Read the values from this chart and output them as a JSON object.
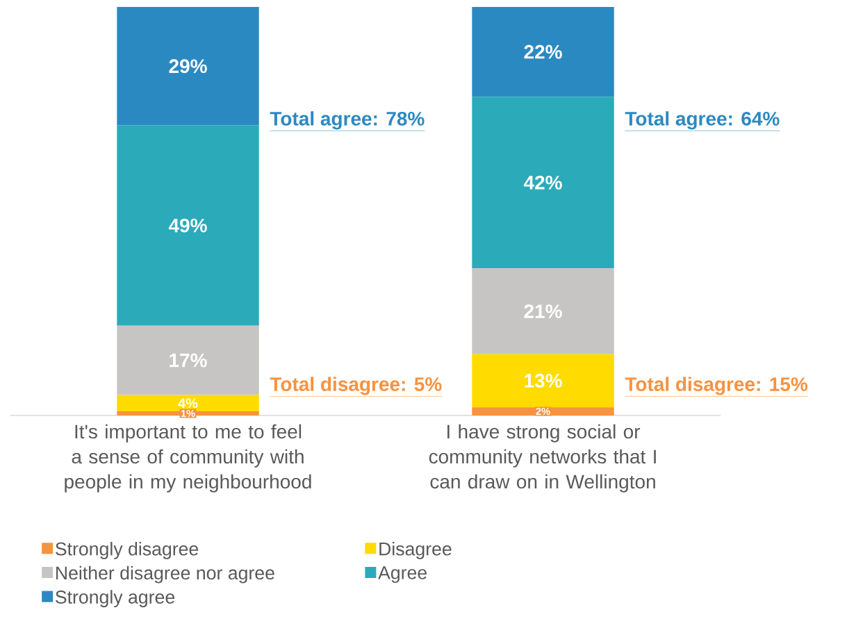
{
  "chart_data": {
    "type": "bar",
    "stacked": true,
    "legend": "bottom left",
    "categories": [
      "It's important to me to feel a sense of community with people in my neighbourhood",
      "I have strong social or community networks that I can draw on in Wellington"
    ],
    "series": [
      {
        "name": "Strongly disagree",
        "color": "#f79240",
        "values": [
          1,
          2
        ],
        "value_labels": [
          "1%",
          "2%"
        ]
      },
      {
        "name": "Disagree",
        "color": "#ffdb00",
        "values": [
          4,
          13
        ],
        "value_labels": [
          "4%",
          "13%"
        ]
      },
      {
        "name": "Neither disagree nor agree",
        "color": "#c6c5c3",
        "values": [
          17,
          21
        ],
        "value_labels": [
          "17%",
          "21%"
        ]
      },
      {
        "name": "Agree",
        "color": "#2baab9",
        "values": [
          49,
          42
        ],
        "value_labels": [
          "49%",
          "42%"
        ]
      },
      {
        "name": "Strongly agree",
        "color": "#2b89c2",
        "values": [
          29,
          22
        ],
        "value_labels": [
          "29%",
          "22%"
        ]
      }
    ],
    "annotations": [
      "Total agree: 78%",
      "Total disagree: 5%",
      "Total agree: 64%",
      "Total disagree: 15%"
    ]
  }
}
